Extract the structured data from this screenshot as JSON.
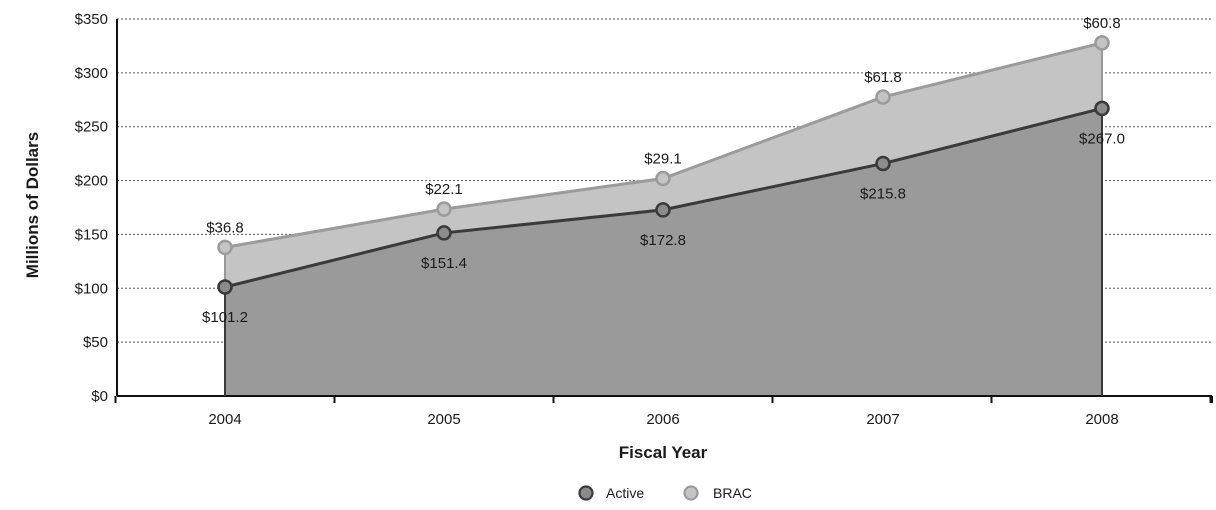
{
  "chart_data": {
    "type": "area",
    "stacked": true,
    "xlabel": "Fiscal Year",
    "ylabel": "Millions of Dollars",
    "categories": [
      "2004",
      "2005",
      "2006",
      "2007",
      "2008"
    ],
    "ylim": [
      0,
      350
    ],
    "yticks": [
      0,
      50,
      100,
      150,
      200,
      250,
      300,
      350
    ],
    "ytick_labels": [
      "$0",
      "$50",
      "$100",
      "$150",
      "$200",
      "$250",
      "$300",
      "$350"
    ],
    "grid": "horizontal dotted",
    "legend_position": "bottom-center",
    "series": [
      {
        "name": "Active",
        "values": [
          101.2,
          151.4,
          172.8,
          215.8,
          267.0
        ],
        "labels": [
          "$101.2",
          "$151.4",
          "$172.8",
          "$215.8",
          "$267.0"
        ],
        "fill_color": "#9a9a9a",
        "line_color": "#3a3a3a",
        "marker_color": "#8c8c8c"
      },
      {
        "name": "BRAC",
        "values": [
          36.8,
          22.1,
          29.1,
          61.8,
          60.8
        ],
        "labels": [
          "$36.8",
          "$22.1",
          "$29.1",
          "$61.8",
          "$60.8"
        ],
        "fill_color": "#c4c4c4",
        "line_color": "#9b9b9b",
        "marker_color": "#c4c4c4"
      }
    ]
  }
}
